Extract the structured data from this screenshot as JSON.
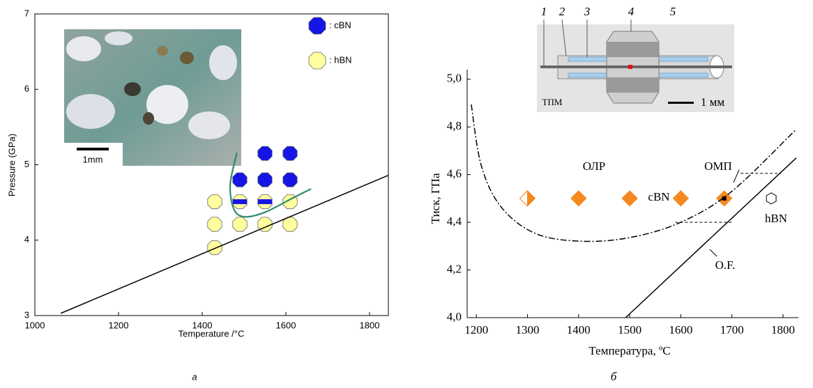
{
  "chart_data": [
    {
      "type": "scatter",
      "xlabel": "Temperature /°C",
      "ylabel": "Pressure (GPa)",
      "caption": "a",
      "xlim": [
        1000,
        1845
      ],
      "ylim": [
        3,
        7
      ],
      "xticks": [
        1000,
        1200,
        1400,
        1600,
        1800
      ],
      "yticks": [
        3,
        4,
        5,
        6,
        7
      ],
      "inset_annotations": [
        "1mm"
      ],
      "series": [
        {
          "name": ": cBN",
          "style": "points",
          "marker": "octagon",
          "color": "#1515e6",
          "x": [
            1490,
            1550,
            1610,
            1550,
            1610
          ],
          "values": [
            4.8,
            4.8,
            4.8,
            5.15,
            5.15
          ]
        },
        {
          "name": ": hBN",
          "style": "points",
          "marker": "octagon",
          "color": "#ffff9e",
          "x": [
            1430,
            1430,
            1430,
            1490,
            1550,
            1610,
            1610
          ],
          "values": [
            4.51,
            4.21,
            3.9,
            4.21,
            4.21,
            4.51,
            4.21
          ]
        },
        {
          "style": "points",
          "marker": "octagon",
          "color": "#ffff9e",
          "stripe": "#1515e6",
          "x": [
            1490,
            1550
          ],
          "values": [
            4.51,
            4.51
          ]
        },
        {
          "style": "line",
          "color": "#000000",
          "x": [
            1062,
            1845
          ],
          "values": [
            3.03,
            4.86
          ]
        },
        {
          "style": "curve",
          "color": "#2e8b6b",
          "x": [
            1483,
            1467,
            1475,
            1500,
            1550,
            1617,
            1660
          ],
          "values": [
            5.16,
            4.74,
            4.42,
            4.31,
            4.37,
            4.56,
            4.68
          ]
        }
      ]
    },
    {
      "type": "scatter",
      "xlabel": "Температура, ºС",
      "ylabel": "Тиск, ГПа",
      "caption": "б",
      "xlim": [
        1182,
        1830
      ],
      "ylim": [
        4.0,
        5.04
      ],
      "xticks": [
        1200,
        1300,
        1400,
        1500,
        1600,
        1700,
        1800
      ],
      "yticks": [
        {
          "value": 4.0,
          "label": "4,0"
        },
        {
          "value": 4.2,
          "label": "4,2"
        },
        {
          "value": 4.4,
          "label": "4,4"
        },
        {
          "value": 4.6,
          "label": "4,6"
        },
        {
          "value": 4.8,
          "label": "4,8"
        },
        {
          "value": 5.0,
          "label": "5,0"
        }
      ],
      "annotations": [
        "ОЛР",
        "ОМП"
      ],
      "inset_annotations": [
        "1",
        "2",
        "3",
        "4",
        "5",
        "ТПМ",
        "1 мм"
      ],
      "series": [
        {
          "name": "cBN",
          "style": "points",
          "marker": "diamond",
          "color": "#f5891f",
          "x": [
            1300,
            1400,
            1500,
            1600,
            1685
          ],
          "values": [
            4.5,
            4.5,
            4.5,
            4.5,
            4.5
          ],
          "open_left": [
            true,
            false,
            false,
            false,
            false
          ],
          "center_dot": [
            false,
            false,
            false,
            false,
            true
          ]
        },
        {
          "name": "hBN",
          "style": "points",
          "marker": "hexagon",
          "color": "#ffffff",
          "x": [
            1777
          ],
          "values": [
            4.5
          ]
        },
        {
          "name": "O.F.",
          "style": "line",
          "color": "#000000",
          "x": [
            1492,
            1826
          ],
          "values": [
            4.0,
            4.67
          ]
        },
        {
          "style": "dashdot",
          "color": "#000000",
          "x": [
            1190,
            1210,
            1250,
            1319,
            1414,
            1510,
            1605,
            1700,
            1826
          ],
          "values": [
            4.894,
            4.635,
            4.46,
            4.35,
            4.32,
            4.34,
            4.405,
            4.53,
            4.79
          ]
        },
        {
          "style": "dashed",
          "color": "#000000",
          "x": [
            1589,
            1700
          ],
          "values": [
            4.4,
            4.4
          ]
        },
        {
          "style": "dashed",
          "color": "#000000",
          "x": [
            1717,
            1796
          ],
          "values": [
            4.605,
            4.605
          ]
        }
      ]
    }
  ]
}
